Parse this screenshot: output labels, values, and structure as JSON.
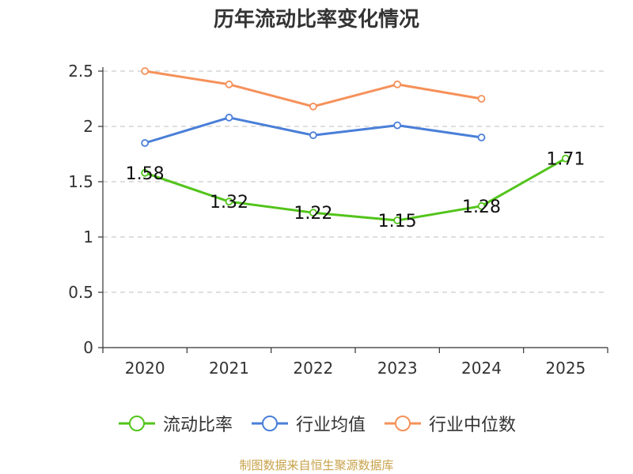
{
  "chart_data": {
    "type": "line",
    "title": "历年流动比率变化情况",
    "categories": [
      "2020",
      "2021",
      "2022",
      "2023",
      "2024",
      "2025"
    ],
    "series": [
      {
        "name": "流动比率",
        "color": "#52c41a",
        "values": [
          1.58,
          1.32,
          1.22,
          1.15,
          1.28,
          1.71
        ],
        "show_labels": true
      },
      {
        "name": "行业均值",
        "color": "#4a7fd8",
        "values": [
          1.85,
          2.08,
          1.92,
          2.01,
          1.9,
          null
        ],
        "show_labels": false
      },
      {
        "name": "行业中位数",
        "color": "#f5915a",
        "values": [
          2.5,
          2.38,
          2.18,
          2.38,
          2.25,
          null
        ],
        "show_labels": false
      }
    ],
    "ylim": [
      0,
      2.5
    ],
    "yticks": [
      0,
      0.5,
      1,
      1.5,
      2,
      2.5
    ],
    "ytick_labels": [
      "0",
      "0.5",
      "1",
      "1.5",
      "2",
      "2.5"
    ],
    "data_labels": [
      "1.58",
      "1.32",
      "1.22",
      "1.15",
      "1.28",
      "1.71"
    ],
    "grid": true,
    "legend_position": "bottom-center",
    "xlabel": "",
    "ylabel": ""
  },
  "source": "制图数据来自恒生聚源数据库"
}
